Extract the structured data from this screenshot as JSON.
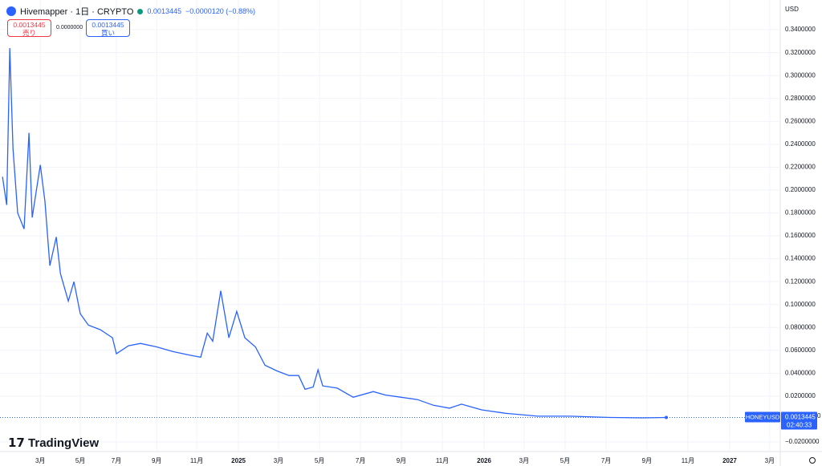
{
  "chart_data": {
    "type": "line",
    "title": "Hivemapper · 1日 · CRYPTO",
    "x": [
      2024.039,
      2024.056,
      2024.069,
      2024.082,
      2024.101,
      2024.127,
      2024.147,
      2024.16,
      2024.193,
      2024.212,
      2024.232,
      2024.258,
      2024.275,
      2024.307,
      2024.33,
      2024.356,
      2024.389,
      2024.438,
      2024.487,
      2024.503,
      2024.552,
      2024.601,
      2024.667,
      2024.732,
      2024.797,
      2024.846,
      2024.873,
      2024.895,
      2024.928,
      2024.961,
      2024.993,
      2025.026,
      2025.069,
      2025.108,
      2025.157,
      2025.206,
      2025.245,
      2025.271,
      2025.304,
      2025.324,
      2025.343,
      2025.402,
      2025.467,
      2025.549,
      2025.598,
      2025.663,
      2025.729,
      2025.794,
      2025.859,
      2025.908,
      2025.99,
      2026.088,
      2026.219,
      2026.35,
      2026.513,
      2026.644,
      2026.742
    ],
    "series": [
      {
        "name": "HONEYUSD",
        "color": "#2962ff",
        "values": [
          0.2116,
          0.187,
          0.324,
          0.236,
          0.18,
          0.166,
          0.25,
          0.176,
          0.222,
          0.19,
          0.134,
          0.159,
          0.127,
          0.103,
          0.12,
          0.092,
          0.082,
          0.078,
          0.071,
          0.057,
          0.064,
          0.066,
          0.063,
          0.059,
          0.056,
          0.054,
          0.075,
          0.068,
          0.112,
          0.071,
          0.094,
          0.071,
          0.063,
          0.047,
          0.042,
          0.038,
          0.038,
          0.026,
          0.028,
          0.043,
          0.029,
          0.027,
          0.019,
          0.024,
          0.021,
          0.019,
          0.017,
          0.012,
          0.0095,
          0.013,
          0.008,
          0.005,
          0.0025,
          0.0025,
          0.0014,
          0.001,
          0.0013445
        ]
      }
    ],
    "xlim": [
      2024.029,
      2027.206
    ],
    "ylim": [
      -0.0284,
      0.366
    ],
    "xticks": [
      {
        "value": 2024.193,
        "label": "3月"
      },
      {
        "value": 2024.356,
        "label": "5月"
      },
      {
        "value": 2024.503,
        "label": "7月"
      },
      {
        "value": 2024.667,
        "label": "9月"
      },
      {
        "value": 2024.83,
        "label": "11月"
      },
      2025,
      {
        "value": 2025.163,
        "label": "3月"
      },
      {
        "value": 2025.33,
        "label": "5月"
      },
      {
        "value": 2025.497,
        "label": "7月"
      },
      {
        "value": 2025.663,
        "label": "9月"
      },
      {
        "value": 2025.83,
        "label": "11月"
      },
      2026,
      {
        "value": 2026.163,
        "label": "3月"
      },
      {
        "value": 2026.33,
        "label": "5月"
      },
      {
        "value": 2026.497,
        "label": "7月"
      },
      {
        "value": 2026.663,
        "label": "9月"
      },
      {
        "value": 2026.83,
        "label": "11月"
      },
      2027,
      {
        "value": 2027.163,
        "label": "3月"
      }
    ],
    "yticks": [
      {
        "value": -0.02,
        "label": "−0.0200000"
      },
      {
        "value": 0.02,
        "label": "0.0200000"
      },
      {
        "value": 0.04,
        "label": "0.0400000"
      },
      {
        "value": 0.06,
        "label": "0.0600000"
      },
      {
        "value": 0.08,
        "label": "0.0800000"
      },
      {
        "value": 0.1,
        "label": "0.1000000"
      },
      {
        "value": 0.12,
        "label": "0.1200000"
      },
      {
        "value": 0.14,
        "label": "0.1400000"
      },
      {
        "value": 0.16,
        "label": "0.1600000"
      },
      {
        "value": 0.18,
        "label": "0.1800000"
      },
      {
        "value": 0.2,
        "label": "0.2000000"
      },
      {
        "value": 0.22,
        "label": "0.2200000"
      },
      {
        "value": 0.24,
        "label": "0.2400000"
      },
      {
        "value": 0.26,
        "label": "0.2600000"
      },
      {
        "value": 0.28,
        "label": "0.2800000"
      },
      {
        "value": 0.3,
        "label": "0.3000000"
      },
      {
        "value": 0.32,
        "label": "0.3200000"
      },
      {
        "value": 0.34,
        "label": "0.3400000"
      }
    ],
    "grid": true,
    "last_price": 0.0013445,
    "countdown": "02:40:33",
    "currency": "USD"
  },
  "header": {
    "price": "0.0013445",
    "change": "−0.0000120 (−0.88%)",
    "sell_price": "0.0013445",
    "sell_label": "売り",
    "spread": "0.0000000",
    "buy_price": "0.0013445",
    "buy_label": "買い",
    "logo": "TradingView",
    "edge_text": "0"
  }
}
